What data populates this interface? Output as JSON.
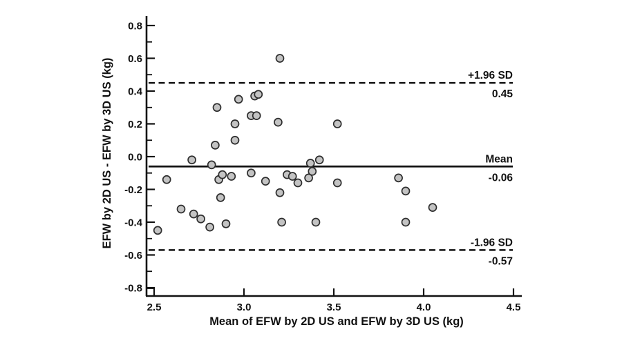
{
  "chart_data": {
    "type": "scatter",
    "title": "",
    "xlabel": "Mean of EFW by 2D US and EFW by 3D US (kg)",
    "ylabel": "EFW by 2D US - EFW by 3D US (kg)",
    "xlim": [
      2.5,
      4.5
    ],
    "ylim": [
      -0.8,
      0.8
    ],
    "x_ticks": [
      2.5,
      3.0,
      3.5,
      4.0,
      4.5
    ],
    "x_tick_labels": [
      "2.5",
      "3.0",
      "3.5",
      "4.0",
      "4.5"
    ],
    "y_ticks": [
      0.8,
      0.6,
      0.4,
      0.2,
      0.0,
      -0.2,
      -0.4,
      -0.6,
      -0.8
    ],
    "y_tick_labels": [
      "0.8",
      "0.6",
      "0.4",
      "0.2",
      "0.0",
      "-0.2",
      "-0.4",
      "-0.6",
      "-0.8"
    ],
    "y_minor_tick_step": 0.1,
    "grid": false,
    "legend": "none",
    "reference_lines": [
      {
        "name": "upper-limit",
        "label": "+1.96 SD",
        "value_label": "0.45",
        "y": 0.45,
        "style": "dashed"
      },
      {
        "name": "mean",
        "label": "Mean",
        "value_label": "-0.06",
        "y": -0.06,
        "style": "solid"
      },
      {
        "name": "lower-limit",
        "label": "-1.96 SD",
        "value_label": "-0.57",
        "y": -0.57,
        "style": "dashed"
      }
    ],
    "points": [
      [
        2.52,
        -0.45
      ],
      [
        2.57,
        -0.14
      ],
      [
        2.65,
        -0.32
      ],
      [
        2.71,
        -0.02
      ],
      [
        2.72,
        -0.35
      ],
      [
        2.76,
        -0.38
      ],
      [
        2.81,
        -0.43
      ],
      [
        2.82,
        -0.05
      ],
      [
        2.84,
        0.07
      ],
      [
        2.85,
        0.3
      ],
      [
        2.86,
        -0.14
      ],
      [
        2.87,
        -0.25
      ],
      [
        2.88,
        -0.11
      ],
      [
        2.9,
        -0.41
      ],
      [
        2.93,
        -0.12
      ],
      [
        2.95,
        0.2
      ],
      [
        2.95,
        0.1
      ],
      [
        2.97,
        0.35
      ],
      [
        3.04,
        0.25
      ],
      [
        3.04,
        -0.1
      ],
      [
        3.06,
        0.37
      ],
      [
        3.08,
        0.38
      ],
      [
        3.07,
        0.25
      ],
      [
        3.12,
        -0.15
      ],
      [
        3.19,
        0.21
      ],
      [
        3.2,
        0.6
      ],
      [
        3.2,
        -0.22
      ],
      [
        3.21,
        -0.4
      ],
      [
        3.24,
        -0.11
      ],
      [
        3.27,
        -0.12
      ],
      [
        3.3,
        -0.16
      ],
      [
        3.36,
        -0.13
      ],
      [
        3.37,
        -0.04
      ],
      [
        3.38,
        -0.09
      ],
      [
        3.4,
        -0.4
      ],
      [
        3.42,
        -0.02
      ],
      [
        3.52,
        0.2
      ],
      [
        3.52,
        -0.16
      ],
      [
        3.86,
        -0.13
      ],
      [
        3.9,
        -0.21
      ],
      [
        3.9,
        -0.4
      ],
      [
        4.05,
        -0.31
      ]
    ],
    "colors": {
      "marker_fill": "#c3c3c3",
      "marker_stroke": "#2e2e2e",
      "axis_color": "#111111",
      "background": "#ffffff"
    },
    "marker_radius": 5.5
  }
}
